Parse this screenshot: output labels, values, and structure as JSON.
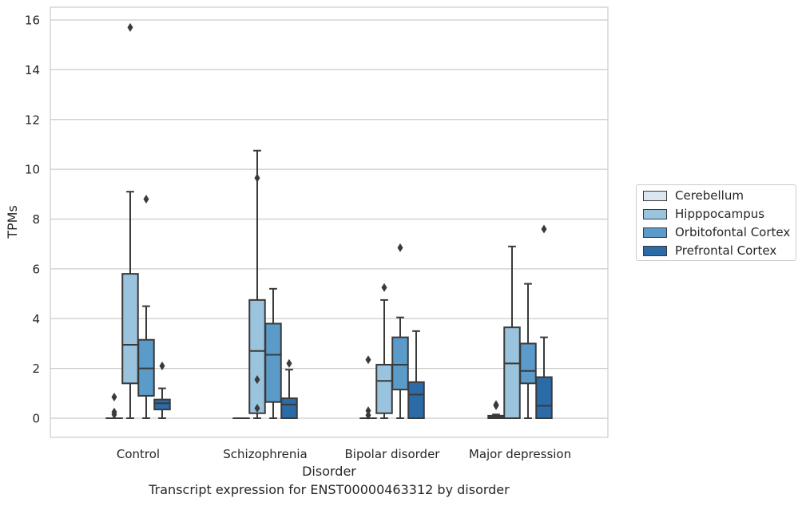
{
  "caption": "Transcript expression for ENST00000463312 by disorder",
  "chart_data": {
    "type": "box",
    "title": "",
    "xlabel": "Disorder",
    "ylabel": "TPMs",
    "ylim": [
      -0.75,
      16.5
    ],
    "yticks": [
      0,
      2,
      4,
      6,
      8,
      10,
      12,
      14,
      16
    ],
    "grid": true,
    "legend_position": "right",
    "categories": [
      "Control",
      "Schizophrenia",
      "Bipolar disorder",
      "Major depression"
    ],
    "series": [
      {
        "name": "Cerebellum",
        "color": "#dbe6f1",
        "boxes": [
          {
            "whislo": 0,
            "q1": 0,
            "med": 0,
            "q3": 0,
            "whishi": 0,
            "fliers": [
              0.15,
              0.25,
              0.85
            ]
          },
          {
            "whislo": 0,
            "q1": 0,
            "med": 0,
            "q3": 0,
            "whishi": 0,
            "fliers": []
          },
          {
            "whislo": 0,
            "q1": 0,
            "med": 0,
            "q3": 0,
            "whishi": 0,
            "fliers": [
              0.12,
              0.3,
              2.35
            ]
          },
          {
            "whislo": 0,
            "q1": 0,
            "med": 0.05,
            "q3": 0.1,
            "whishi": 0.15,
            "fliers": [
              0.5,
              0.55
            ]
          }
        ]
      },
      {
        "name": "Hipppocampus",
        "color": "#9ac3de",
        "boxes": [
          {
            "whislo": 0,
            "q1": 1.4,
            "med": 2.95,
            "q3": 5.8,
            "whishi": 9.1,
            "fliers": [
              15.7
            ]
          },
          {
            "whislo": 0,
            "q1": 0.2,
            "med": 2.7,
            "q3": 4.75,
            "whishi": 10.75,
            "fliers": [
              0.4,
              1.55,
              9.65
            ]
          },
          {
            "whislo": 0,
            "q1": 0.2,
            "med": 1.5,
            "q3": 2.15,
            "whishi": 4.75,
            "fliers": [
              5.25
            ]
          },
          {
            "whislo": 0,
            "q1": 0,
            "med": 2.2,
            "q3": 3.65,
            "whishi": 6.9,
            "fliers": []
          }
        ]
      },
      {
        "name": "Orbitofontal Cortex",
        "color": "#5b9bc9",
        "boxes": [
          {
            "whislo": 0,
            "q1": 0.9,
            "med": 2.0,
            "q3": 3.15,
            "whishi": 4.5,
            "fliers": [
              8.8
            ]
          },
          {
            "whislo": 0,
            "q1": 0.65,
            "med": 2.55,
            "q3": 3.8,
            "whishi": 5.2,
            "fliers": []
          },
          {
            "whislo": 0,
            "q1": 1.15,
            "med": 2.15,
            "q3": 3.25,
            "whishi": 4.05,
            "fliers": [
              6.85
            ]
          },
          {
            "whislo": 0,
            "q1": 1.4,
            "med": 1.9,
            "q3": 3.0,
            "whishi": 5.4,
            "fliers": []
          }
        ]
      },
      {
        "name": "Prefrontal Cortex",
        "color": "#2b6ba8",
        "boxes": [
          {
            "whislo": 0,
            "q1": 0.35,
            "med": 0.6,
            "q3": 0.75,
            "whishi": 1.2,
            "fliers": [
              2.1
            ]
          },
          {
            "whislo": 0,
            "q1": 0,
            "med": 0.55,
            "q3": 0.8,
            "whishi": 1.95,
            "fliers": [
              2.2
            ]
          },
          {
            "whislo": 0,
            "q1": 0,
            "med": 0.95,
            "q3": 1.45,
            "whishi": 3.5,
            "fliers": []
          },
          {
            "whislo": 0,
            "q1": 0,
            "med": 0.5,
            "q3": 1.65,
            "whishi": 3.25,
            "fliers": [
              7.6
            ]
          }
        ]
      }
    ]
  }
}
